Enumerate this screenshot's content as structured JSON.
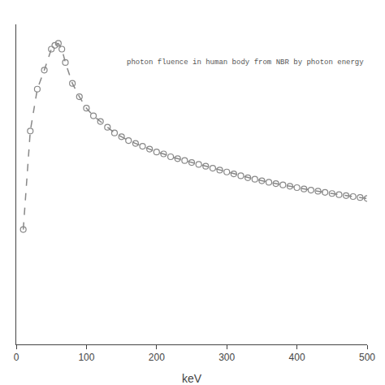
{
  "chart_data": {
    "type": "line",
    "x": [
      10,
      20,
      30,
      40,
      50,
      55,
      60,
      65,
      70,
      80,
      90,
      100,
      110,
      120,
      130,
      140,
      150,
      160,
      170,
      180,
      190,
      200,
      210,
      220,
      230,
      240,
      250,
      260,
      270,
      280,
      290,
      300,
      310,
      320,
      330,
      340,
      350,
      360,
      370,
      380,
      390,
      400,
      410,
      420,
      430,
      440,
      450,
      460,
      470,
      480,
      490,
      500
    ],
    "values": [
      0.003,
      0.52,
      0.74,
      0.84,
      0.95,
      0.97,
      0.98,
      0.95,
      0.88,
      0.77,
      0.7,
      0.64,
      0.6,
      0.57,
      0.54,
      0.51,
      0.49,
      0.47,
      0.455,
      0.44,
      0.425,
      0.41,
      0.4,
      0.385,
      0.375,
      0.365,
      0.355,
      0.345,
      0.335,
      0.325,
      0.315,
      0.305,
      0.295,
      0.285,
      0.275,
      0.267,
      0.259,
      0.251,
      0.244,
      0.237,
      0.23,
      0.223,
      0.216,
      0.21,
      0.204,
      0.198,
      0.192,
      0.186,
      0.181,
      0.176,
      0.171,
      0.166
    ],
    "color": "#888888",
    "marker": "circle-open",
    "line_style": "dashed",
    "xlabel": "keV",
    "xlim": [
      0,
      500
    ],
    "xticks": [
      0,
      100,
      200,
      300,
      400,
      500
    ],
    "ylim": [
      -0.6,
      1.08
    ],
    "grid": false,
    "tick_labels": "x",
    "annotations": [
      {
        "text": "photon fluence in human body from NBR by photon energy",
        "x": 155,
        "y": 0.88
      }
    ]
  }
}
